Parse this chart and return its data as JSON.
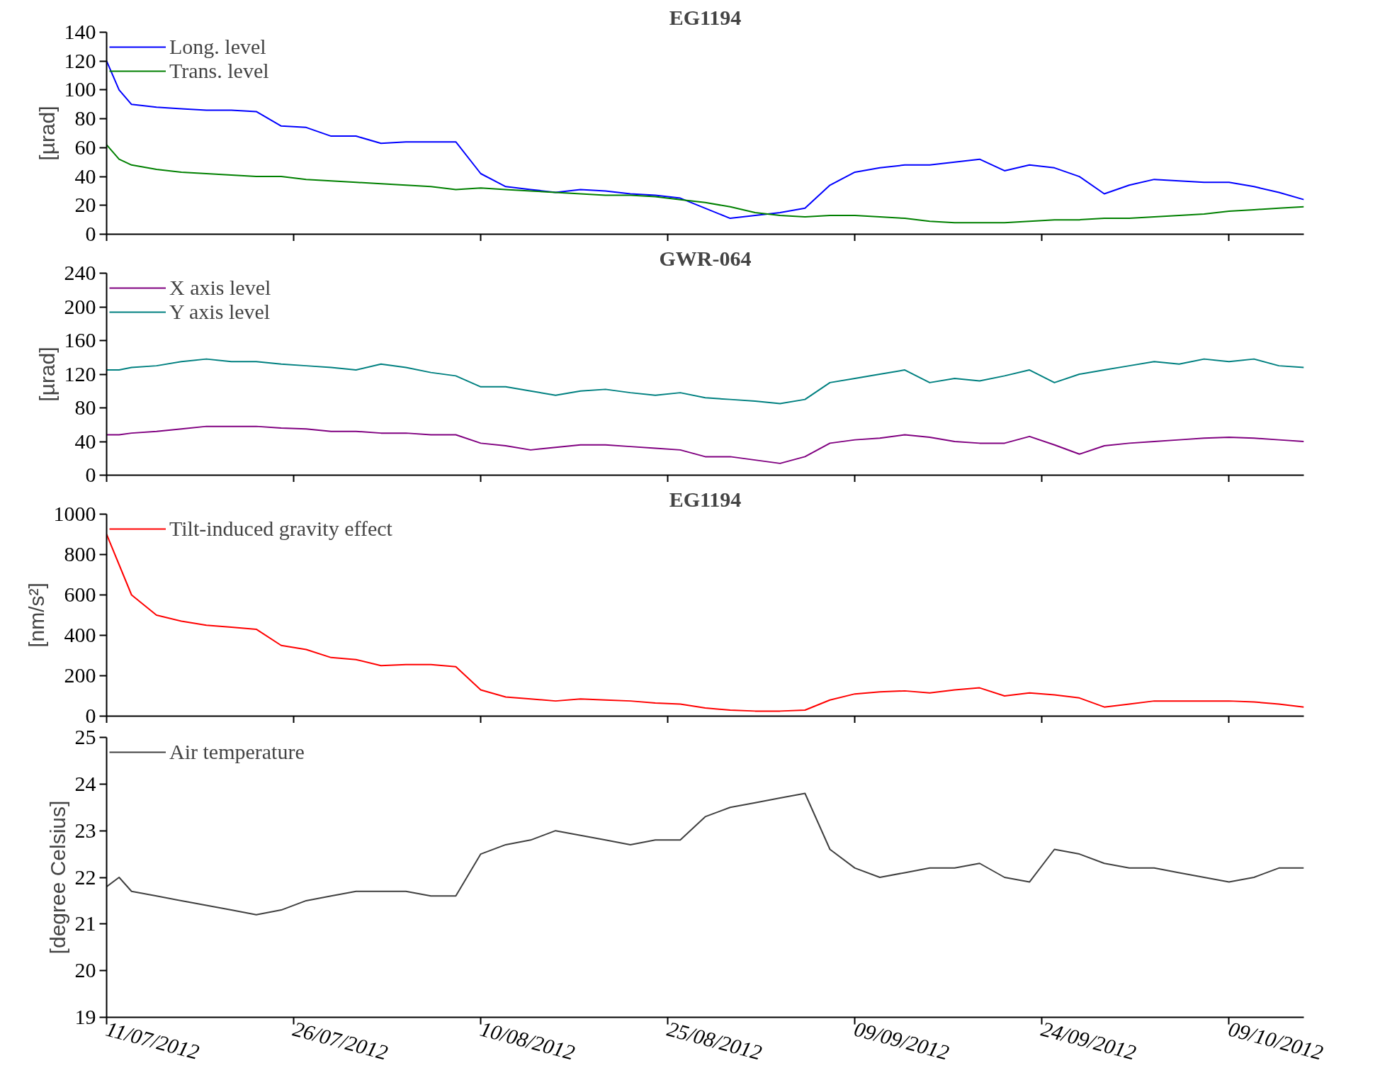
{
  "chart_data": [
    {
      "type": "line",
      "title": "EG1194",
      "ylabel": "[µrad]",
      "legend": "top left",
      "grid": false,
      "tick_labels": "y",
      "x": [
        "2012-07-11",
        "2012-07-12",
        "2012-07-13",
        "2012-07-15",
        "2012-07-17",
        "2012-07-19",
        "2012-07-21",
        "2012-07-23",
        "2012-07-25",
        "2012-07-27",
        "2012-07-29",
        "2012-07-31",
        "2012-08-02",
        "2012-08-04",
        "2012-08-06",
        "2012-08-08",
        "2012-08-10",
        "2012-08-12",
        "2012-08-14",
        "2012-08-16",
        "2012-08-18",
        "2012-08-20",
        "2012-08-22",
        "2012-08-24",
        "2012-08-26",
        "2012-08-28",
        "2012-08-30",
        "2012-09-01",
        "2012-09-03",
        "2012-09-05",
        "2012-09-07",
        "2012-09-09",
        "2012-09-11",
        "2012-09-13",
        "2012-09-15",
        "2012-09-17",
        "2012-09-19",
        "2012-09-21",
        "2012-09-23",
        "2012-09-25",
        "2012-09-27",
        "2012-09-29",
        "2012-10-01",
        "2012-10-03",
        "2012-10-05",
        "2012-10-07",
        "2012-10-09",
        "2012-10-11",
        "2012-10-13",
        "2012-10-15"
      ],
      "xlim": [
        "2012-07-11",
        "2012-10-15"
      ],
      "xticks": [
        {
          "value": "2012-07-11",
          "label": null
        },
        {
          "value": "2012-07-26",
          "label": null
        },
        {
          "value": "2012-08-10",
          "label": null
        },
        {
          "value": "2012-08-25",
          "label": null
        },
        {
          "value": "2012-09-09",
          "label": null
        },
        {
          "value": "2012-09-24",
          "label": null
        },
        {
          "value": "2012-10-09",
          "label": null
        }
      ],
      "ylim": [
        0,
        140
      ],
      "yticks": [
        0,
        20,
        40,
        60,
        80,
        100,
        120,
        140
      ],
      "series": [
        {
          "name": "Long. level",
          "color": "#0000ff",
          "values": [
            120,
            100,
            90,
            88,
            87,
            86,
            86,
            85,
            75,
            74,
            68,
            68,
            63,
            64,
            64,
            64,
            42,
            33,
            31,
            29,
            31,
            30,
            28,
            27,
            25,
            18,
            11,
            13,
            15,
            18,
            34,
            43,
            46,
            48,
            48,
            50,
            52,
            44,
            48,
            46,
            40,
            28,
            34,
            38,
            37,
            36,
            36,
            33,
            29,
            24
          ]
        },
        {
          "name": "Trans. level",
          "color": "#008000",
          "values": [
            62,
            52,
            48,
            45,
            43,
            42,
            41,
            40,
            40,
            38,
            37,
            36,
            35,
            34,
            33,
            31,
            32,
            31,
            30,
            29,
            28,
            27,
            27,
            26,
            24,
            22,
            19,
            15,
            13,
            12,
            13,
            13,
            12,
            11,
            9,
            8,
            8,
            8,
            9,
            10,
            10,
            11,
            11,
            12,
            13,
            14,
            16,
            17,
            18,
            19
          ]
        }
      ]
    },
    {
      "type": "line",
      "title": "GWR-064",
      "ylabel": "[µrad]",
      "legend": "top left",
      "grid": false,
      "tick_labels": "y",
      "x": [
        "2012-07-11",
        "2012-07-12",
        "2012-07-13",
        "2012-07-15",
        "2012-07-17",
        "2012-07-19",
        "2012-07-21",
        "2012-07-23",
        "2012-07-25",
        "2012-07-27",
        "2012-07-29",
        "2012-07-31",
        "2012-08-02",
        "2012-08-04",
        "2012-08-06",
        "2012-08-08",
        "2012-08-10",
        "2012-08-12",
        "2012-08-14",
        "2012-08-16",
        "2012-08-18",
        "2012-08-20",
        "2012-08-22",
        "2012-08-24",
        "2012-08-26",
        "2012-08-28",
        "2012-08-30",
        "2012-09-01",
        "2012-09-03",
        "2012-09-05",
        "2012-09-07",
        "2012-09-09",
        "2012-09-11",
        "2012-09-13",
        "2012-09-15",
        "2012-09-17",
        "2012-09-19",
        "2012-09-21",
        "2012-09-23",
        "2012-09-25",
        "2012-09-27",
        "2012-09-29",
        "2012-10-01",
        "2012-10-03",
        "2012-10-05",
        "2012-10-07",
        "2012-10-09",
        "2012-10-11",
        "2012-10-13",
        "2012-10-15"
      ],
      "xlim": [
        "2012-07-11",
        "2012-10-15"
      ],
      "xticks": [
        {
          "value": "2012-07-11",
          "label": null
        },
        {
          "value": "2012-07-26",
          "label": null
        },
        {
          "value": "2012-08-10",
          "label": null
        },
        {
          "value": "2012-08-25",
          "label": null
        },
        {
          "value": "2012-09-09",
          "label": null
        },
        {
          "value": "2012-09-24",
          "label": null
        },
        {
          "value": "2012-10-09",
          "label": null
        }
      ],
      "ylim": [
        0,
        240
      ],
      "yticks": [
        0,
        40,
        80,
        120,
        160,
        200,
        240
      ],
      "series": [
        {
          "name": "X axis level",
          "color": "#800080",
          "values": [
            48,
            48,
            50,
            52,
            55,
            58,
            58,
            58,
            56,
            55,
            52,
            52,
            50,
            50,
            48,
            48,
            38,
            35,
            30,
            33,
            36,
            36,
            34,
            32,
            30,
            22,
            22,
            18,
            14,
            22,
            38,
            42,
            44,
            48,
            45,
            40,
            38,
            38,
            46,
            36,
            25,
            35,
            38,
            40,
            42,
            44,
            45,
            44,
            42,
            40
          ]
        },
        {
          "name": "Y axis level",
          "color": "#008080",
          "values": [
            125,
            125,
            128,
            130,
            135,
            138,
            135,
            135,
            132,
            130,
            128,
            125,
            132,
            128,
            122,
            118,
            105,
            105,
            100,
            95,
            100,
            102,
            98,
            95,
            98,
            92,
            90,
            88,
            85,
            90,
            110,
            115,
            120,
            125,
            110,
            115,
            112,
            118,
            125,
            110,
            120,
            125,
            130,
            135,
            132,
            138,
            135,
            138,
            130,
            128
          ]
        }
      ]
    },
    {
      "type": "line",
      "title": "EG1194",
      "ylabel": "[nm/s²]",
      "legend": "top left",
      "grid": false,
      "tick_labels": "y",
      "x": [
        "2012-07-11",
        "2012-07-12",
        "2012-07-13",
        "2012-07-15",
        "2012-07-17",
        "2012-07-19",
        "2012-07-21",
        "2012-07-23",
        "2012-07-25",
        "2012-07-27",
        "2012-07-29",
        "2012-07-31",
        "2012-08-02",
        "2012-08-04",
        "2012-08-06",
        "2012-08-08",
        "2012-08-10",
        "2012-08-12",
        "2012-08-14",
        "2012-08-16",
        "2012-08-18",
        "2012-08-20",
        "2012-08-22",
        "2012-08-24",
        "2012-08-26",
        "2012-08-28",
        "2012-08-30",
        "2012-09-01",
        "2012-09-03",
        "2012-09-05",
        "2012-09-07",
        "2012-09-09",
        "2012-09-11",
        "2012-09-13",
        "2012-09-15",
        "2012-09-17",
        "2012-09-19",
        "2012-09-21",
        "2012-09-23",
        "2012-09-25",
        "2012-09-27",
        "2012-09-29",
        "2012-10-01",
        "2012-10-03",
        "2012-10-05",
        "2012-10-07",
        "2012-10-09",
        "2012-10-11",
        "2012-10-13",
        "2012-10-15"
      ],
      "xlim": [
        "2012-07-11",
        "2012-10-15"
      ],
      "xticks": [
        {
          "value": "2012-07-11",
          "label": null
        },
        {
          "value": "2012-07-26",
          "label": null
        },
        {
          "value": "2012-08-10",
          "label": null
        },
        {
          "value": "2012-08-25",
          "label": null
        },
        {
          "value": "2012-09-09",
          "label": null
        },
        {
          "value": "2012-09-24",
          "label": null
        },
        {
          "value": "2012-10-09",
          "label": null
        }
      ],
      "ylim": [
        0,
        1000
      ],
      "yticks": [
        0,
        200,
        400,
        600,
        800,
        1000
      ],
      "series": [
        {
          "name": "Tilt-induced gravity effect",
          "color": "#ff0000",
          "values": [
            900,
            750,
            600,
            500,
            470,
            450,
            440,
            430,
            350,
            330,
            290,
            280,
            250,
            255,
            255,
            245,
            130,
            95,
            85,
            75,
            85,
            80,
            75,
            65,
            60,
            40,
            30,
            25,
            25,
            30,
            80,
            110,
            120,
            125,
            115,
            130,
            140,
            100,
            115,
            105,
            90,
            45,
            60,
            75,
            75,
            75,
            75,
            70,
            60,
            45
          ]
        }
      ]
    },
    {
      "type": "line",
      "ylabel": "[degree Celsius]",
      "legend": "top left",
      "grid": false,
      "x": [
        "2012-07-11",
        "2012-07-12",
        "2012-07-13",
        "2012-07-15",
        "2012-07-17",
        "2012-07-19",
        "2012-07-21",
        "2012-07-23",
        "2012-07-25",
        "2012-07-27",
        "2012-07-29",
        "2012-07-31",
        "2012-08-02",
        "2012-08-04",
        "2012-08-06",
        "2012-08-08",
        "2012-08-10",
        "2012-08-12",
        "2012-08-14",
        "2012-08-16",
        "2012-08-18",
        "2012-08-20",
        "2012-08-22",
        "2012-08-24",
        "2012-08-26",
        "2012-08-28",
        "2012-08-30",
        "2012-09-01",
        "2012-09-03",
        "2012-09-05",
        "2012-09-07",
        "2012-09-09",
        "2012-09-11",
        "2012-09-13",
        "2012-09-15",
        "2012-09-17",
        "2012-09-19",
        "2012-09-21",
        "2012-09-23",
        "2012-09-25",
        "2012-09-27",
        "2012-09-29",
        "2012-10-01",
        "2012-10-03",
        "2012-10-05",
        "2012-10-07",
        "2012-10-09",
        "2012-10-11",
        "2012-10-13",
        "2012-10-15"
      ],
      "xlim": [
        "2012-07-11",
        "2012-10-15"
      ],
      "xticks": [
        {
          "value": "2012-07-11",
          "label": "11/07/2012"
        },
        {
          "value": "2012-07-26",
          "label": "26/07/2012"
        },
        {
          "value": "2012-08-10",
          "label": "10/08/2012"
        },
        {
          "value": "2012-08-25",
          "label": "25/08/2012"
        },
        {
          "value": "2012-09-09",
          "label": "09/09/2012"
        },
        {
          "value": "2012-09-24",
          "label": "24/09/2012"
        },
        {
          "value": "2012-10-09",
          "label": "09/10/2012"
        }
      ],
      "ylim": [
        19,
        25
      ],
      "yticks": [
        19,
        20,
        21,
        22,
        23,
        24,
        25
      ],
      "series": [
        {
          "name": "Air temperature",
          "color": "#404040",
          "values": [
            21.8,
            22.0,
            21.7,
            21.6,
            21.5,
            21.4,
            21.3,
            21.2,
            21.3,
            21.5,
            21.6,
            21.7,
            21.7,
            21.7,
            21.6,
            21.6,
            22.5,
            22.7,
            22.8,
            23.0,
            22.9,
            22.8,
            22.7,
            22.8,
            22.8,
            23.3,
            23.5,
            23.6,
            23.7,
            23.8,
            22.6,
            22.2,
            22.0,
            22.1,
            22.2,
            22.2,
            22.3,
            22.0,
            21.9,
            22.6,
            22.5,
            22.3,
            22.2,
            22.2,
            22.1,
            22.0,
            21.9,
            22.0,
            22.2,
            22.2
          ]
        }
      ]
    }
  ]
}
